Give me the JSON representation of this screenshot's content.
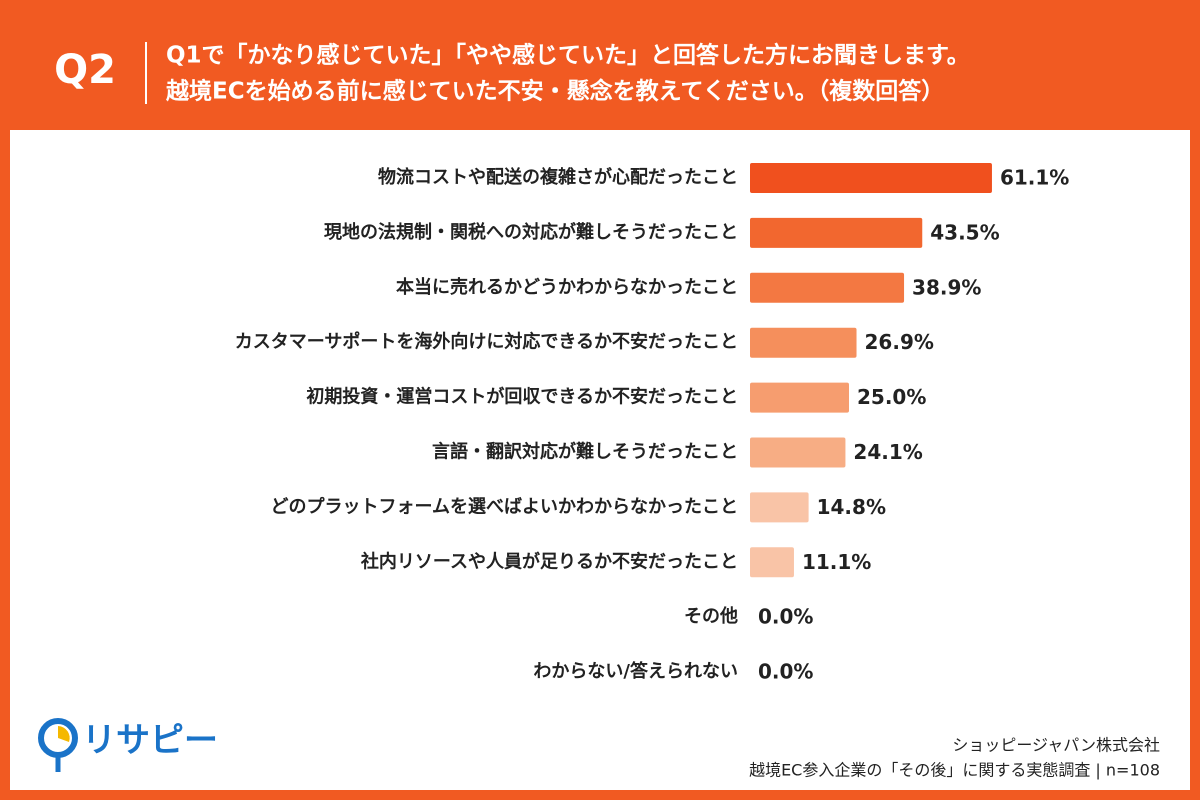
{
  "chart_data": {
    "type": "hbar",
    "question_label": "Q2",
    "title": [
      "Q1で「かなり感じていた」「やや感じていた」と回答した方にお聞きします。",
      "越境ECを始める前に感じていた不安・懸念を教えてください。（複数回答）"
    ],
    "categories": [
      "物流コストや配送の複雑さが心配だったこと",
      "現地の法規制・関税への対応が難しそうだったこと",
      "本当に売れるかどうかわからなかったこと",
      "カスタマーサポートを海外向けに対応できるか不安だったこと",
      "初期投資・運営コストが回収できるか不安だったこと",
      "言語・翻訳対応が難しそうだったこと",
      "どのプラットフォームを選べばよいかわからなかったこと",
      "社内リソースや人員が足りるか不安だったこと",
      "その他",
      "わからない/答えられない"
    ],
    "values": [
      61.1,
      43.5,
      38.9,
      26.9,
      25.0,
      24.1,
      14.8,
      11.1,
      0.0,
      0.0
    ],
    "value_labels": [
      "61.1%",
      "43.5%",
      "38.9%",
      "26.9%",
      "25.0%",
      "24.1%",
      "14.8%",
      "11.1%",
      "0.0%",
      "0.0%"
    ],
    "colors": [
      "#f0501e",
      "#f2672f",
      "#f37842",
      "#f58f5c",
      "#f69d6f",
      "#f7ad84",
      "#f9c4a7",
      "#f9c4a7",
      "#f9c4a7",
      "#f9c4a7"
    ],
    "logo": "リサピー",
    "source": [
      "ショッピージャパン株式会社",
      "越境EC参入企業の「その後」に関する実態調査 | n=108"
    ]
  }
}
